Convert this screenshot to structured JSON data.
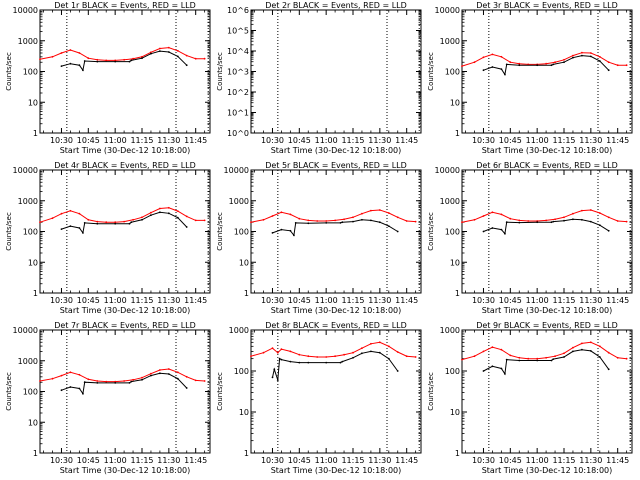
{
  "chart_data": [
    {
      "type": "line",
      "title": "Det 1r BLACK = Events, RED = LLD",
      "xlabel": "Start Time (30-Dec-12 10:18:00)",
      "ylabel": "Counts/sec",
      "yscale": "log",
      "ylim": [
        1,
        10000
      ],
      "yticks": [
        "1",
        "10",
        "100",
        "1000",
        "10000"
      ],
      "xlim": [
        "10:18",
        "11:53"
      ],
      "xticks": [
        "10:30",
        "10:45",
        "11:00",
        "11:15",
        "11:30",
        "11:45"
      ],
      "vlines": [
        "10:33",
        "11:34",
        "11:52"
      ],
      "series": [
        {
          "color": "#ff0000",
          "x": [
            "10:18",
            "10:25",
            "10:30",
            "10:35",
            "10:40",
            "10:45",
            "10:50",
            "10:55",
            "11:00",
            "11:05",
            "11:10",
            "11:15",
            "11:20",
            "11:25",
            "11:30",
            "11:35",
            "11:40",
            "11:45",
            "11:50"
          ],
          "values": [
            250,
            300,
            400,
            500,
            400,
            270,
            240,
            230,
            230,
            240,
            260,
            300,
            420,
            560,
            600,
            470,
            330,
            260,
            260
          ]
        },
        {
          "color": "#000000",
          "x": [
            "10:30",
            "10:35",
            "10:40",
            "10:42",
            "10:43",
            "10:50",
            "11:00",
            "11:08",
            "11:09",
            "11:15",
            "11:20",
            "11:25",
            "11:30",
            "11:35",
            "11:40"
          ],
          "values": [
            150,
            180,
            160,
            110,
            220,
            210,
            210,
            210,
            230,
            270,
            380,
            460,
            430,
            310,
            160
          ]
        }
      ]
    },
    {
      "type": "line",
      "title": "Det 2r BLACK = Events, RED = LLD",
      "xlabel": "Start Time (30-Dec-12 10:18:00)",
      "ylabel": "Counts/sec",
      "yscale": "log",
      "ylim": [
        1,
        1000000
      ],
      "yticks": [
        "10^0",
        "10^1",
        "10^2",
        "10^3",
        "10^4",
        "10^5",
        "10^6"
      ],
      "xlim": [
        "10:18",
        "11:53"
      ],
      "xticks": [
        "10:30",
        "10:45",
        "11:00",
        "11:15",
        "11:30",
        "11:45"
      ],
      "vlines": [
        "10:33",
        "11:34",
        "11:52"
      ],
      "series": []
    },
    {
      "type": "line",
      "title": "Det 3r BLACK = Events, RED = LLD",
      "xlabel": "Start Time (30-Dec-12 10:18:00)",
      "ylabel": "Counts/sec",
      "yscale": "log",
      "ylim": [
        1,
        10000
      ],
      "yticks": [
        "1",
        "10",
        "100",
        "1000",
        "10000"
      ],
      "xlim": [
        "10:18",
        "11:53"
      ],
      "xticks": [
        "10:30",
        "10:45",
        "11:00",
        "11:15",
        "11:30",
        "11:45"
      ],
      "vlines": [
        "10:33",
        "11:34",
        "11:52"
      ],
      "series": [
        {
          "color": "#ff0000",
          "x": [
            "10:18",
            "10:25",
            "10:30",
            "10:35",
            "10:40",
            "10:45",
            "10:50",
            "10:55",
            "11:00",
            "11:05",
            "11:10",
            "11:15",
            "11:20",
            "11:25",
            "11:30",
            "11:35",
            "11:40",
            "11:45",
            "11:50"
          ],
          "values": [
            150,
            200,
            290,
            360,
            300,
            200,
            180,
            170,
            170,
            180,
            200,
            240,
            330,
            410,
            400,
            300,
            200,
            160,
            160
          ]
        },
        {
          "color": "#000000",
          "x": [
            "10:30",
            "10:35",
            "10:40",
            "10:42",
            "10:43",
            "10:50",
            "11:00",
            "11:08",
            "11:09",
            "11:15",
            "11:20",
            "11:25",
            "11:30",
            "11:35",
            "11:40"
          ],
          "values": [
            110,
            140,
            120,
            80,
            170,
            160,
            160,
            160,
            170,
            200,
            280,
            330,
            310,
            220,
            110
          ]
        }
      ]
    },
    {
      "type": "line",
      "title": "Det 4r BLACK = Events, RED = LLD",
      "xlabel": "Start Time (30-Dec-12 10:18:00)",
      "ylabel": "Counts/sec",
      "yscale": "log",
      "ylim": [
        1,
        10000
      ],
      "yticks": [
        "1",
        "10",
        "100",
        "1000",
        "10000"
      ],
      "xlim": [
        "10:18",
        "11:53"
      ],
      "xticks": [
        "10:30",
        "10:45",
        "11:00",
        "11:15",
        "11:30",
        "11:45"
      ],
      "vlines": [
        "10:33",
        "11:34",
        "11:52"
      ],
      "series": [
        {
          "color": "#ff0000",
          "x": [
            "10:18",
            "10:25",
            "10:30",
            "10:35",
            "10:40",
            "10:45",
            "10:50",
            "10:55",
            "11:00",
            "11:05",
            "11:10",
            "11:15",
            "11:20",
            "11:25",
            "11:30",
            "11:35",
            "11:40",
            "11:45",
            "11:50"
          ],
          "values": [
            200,
            270,
            380,
            470,
            380,
            240,
            210,
            200,
            200,
            210,
            240,
            290,
            410,
            560,
            590,
            460,
            310,
            230,
            230
          ]
        },
        {
          "color": "#000000",
          "x": [
            "10:30",
            "10:35",
            "10:40",
            "10:42",
            "10:43",
            "10:50",
            "11:00",
            "11:08",
            "11:09",
            "11:15",
            "11:20",
            "11:25",
            "11:30",
            "11:35",
            "11:40"
          ],
          "values": [
            120,
            150,
            130,
            90,
            190,
            180,
            180,
            180,
            200,
            240,
            340,
            420,
            390,
            280,
            140
          ]
        }
      ]
    },
    {
      "type": "line",
      "title": "Det 5r BLACK = Events, RED = LLD",
      "xlabel": "Start Time (30-Dec-12 10:18:00)",
      "ylabel": "Counts/sec",
      "yscale": "log",
      "ylim": [
        1,
        10000
      ],
      "yticks": [
        "1",
        "10",
        "100",
        "1000",
        "10000"
      ],
      "xlim": [
        "10:18",
        "11:53"
      ],
      "xticks": [
        "10:30",
        "10:45",
        "11:00",
        "11:15",
        "11:30",
        "11:45"
      ],
      "vlines": [
        "10:33",
        "11:34",
        "11:52"
      ],
      "series": [
        {
          "color": "#ff0000",
          "x": [
            "10:18",
            "10:25",
            "10:30",
            "10:35",
            "10:40",
            "10:45",
            "10:50",
            "10:55",
            "11:00",
            "11:05",
            "11:10",
            "11:15",
            "11:20",
            "11:25",
            "11:30",
            "11:35",
            "11:40",
            "11:45",
            "11:50"
          ],
          "values": [
            200,
            240,
            320,
            420,
            360,
            260,
            230,
            220,
            220,
            230,
            250,
            290,
            380,
            480,
            500,
            400,
            290,
            220,
            210
          ]
        },
        {
          "color": "#000000",
          "x": [
            "10:30",
            "10:35",
            "10:40",
            "10:42",
            "10:43",
            "10:50",
            "11:00",
            "11:08",
            "11:09",
            "11:15",
            "11:20",
            "11:25",
            "11:30",
            "11:35",
            "11:40"
          ],
          "values": [
            90,
            115,
            105,
            75,
            190,
            185,
            190,
            190,
            200,
            210,
            240,
            230,
            200,
            150,
            100
          ]
        }
      ]
    },
    {
      "type": "line",
      "title": "Det 6r BLACK = Events, RED = LLD",
      "xlabel": "Start Time (30-Dec-12 10:18:00)",
      "ylabel": "Counts/sec",
      "yscale": "log",
      "ylim": [
        1,
        10000
      ],
      "yticks": [
        "1",
        "10",
        "100",
        "1000",
        "10000"
      ],
      "xlim": [
        "10:18",
        "11:53"
      ],
      "xticks": [
        "10:30",
        "10:45",
        "11:00",
        "11:15",
        "11:30",
        "11:45"
      ],
      "vlines": [
        "10:33",
        "11:34",
        "11:52"
      ],
      "series": [
        {
          "color": "#ff0000",
          "x": [
            "10:18",
            "10:25",
            "10:30",
            "10:35",
            "10:40",
            "10:45",
            "10:50",
            "10:55",
            "11:00",
            "11:05",
            "11:10",
            "11:15",
            "11:20",
            "11:25",
            "11:30",
            "11:35",
            "11:40",
            "11:45",
            "11:50"
          ],
          "values": [
            200,
            240,
            320,
            420,
            360,
            260,
            230,
            220,
            220,
            230,
            250,
            290,
            380,
            480,
            500,
            400,
            290,
            220,
            210
          ]
        },
        {
          "color": "#000000",
          "x": [
            "10:30",
            "10:35",
            "10:40",
            "10:42",
            "10:43",
            "10:50",
            "11:00",
            "11:08",
            "11:09",
            "11:15",
            "11:20",
            "11:25",
            "11:30",
            "11:35",
            "11:40"
          ],
          "values": [
            100,
            130,
            115,
            85,
            200,
            195,
            200,
            200,
            210,
            225,
            250,
            240,
            210,
            160,
            105
          ]
        }
      ]
    },
    {
      "type": "line",
      "title": "Det 7r BLACK = Events, RED = LLD",
      "xlabel": "Start Time (30-Dec-12 10:18:00)",
      "ylabel": "Counts/sec",
      "yscale": "log",
      "ylim": [
        1,
        10000
      ],
      "yticks": [
        "1",
        "10",
        "100",
        "1000",
        "10000"
      ],
      "xlim": [
        "10:18",
        "11:53"
      ],
      "xticks": [
        "10:30",
        "10:45",
        "11:00",
        "11:15",
        "11:30",
        "11:45"
      ],
      "vlines": [
        "10:33",
        "11:34",
        "11:52"
      ],
      "series": [
        {
          "color": "#ff0000",
          "x": [
            "10:18",
            "10:25",
            "10:30",
            "10:35",
            "10:40",
            "10:45",
            "10:50",
            "10:55",
            "11:00",
            "11:05",
            "11:10",
            "11:15",
            "11:20",
            "11:25",
            "11:30",
            "11:35",
            "11:40",
            "11:45",
            "11:50"
          ],
          "values": [
            220,
            260,
            330,
            420,
            350,
            250,
            220,
            210,
            210,
            220,
            240,
            280,
            380,
            500,
            540,
            420,
            300,
            230,
            220
          ]
        },
        {
          "color": "#000000",
          "x": [
            "10:30",
            "10:35",
            "10:40",
            "10:42",
            "10:43",
            "10:50",
            "11:00",
            "11:08",
            "11:09",
            "11:15",
            "11:20",
            "11:25",
            "11:30",
            "11:35",
            "11:40"
          ],
          "values": [
            110,
            140,
            125,
            85,
            200,
            190,
            190,
            190,
            210,
            240,
            330,
            390,
            370,
            260,
            130
          ]
        }
      ]
    },
    {
      "type": "line",
      "title": "Det 8r BLACK = Events, RED = LLD",
      "xlabel": "Start Time (30-Dec-12 10:18:00)",
      "ylabel": "Counts/sec",
      "yscale": "log",
      "ylim": [
        1,
        1000
      ],
      "yticks": [
        "1",
        "10",
        "100",
        "1000"
      ],
      "xlim": [
        "10:18",
        "11:53"
      ],
      "xticks": [
        "10:30",
        "10:45",
        "11:00",
        "11:15",
        "11:30",
        "11:45"
      ],
      "vlines": [
        "10:33",
        "11:34",
        "11:52"
      ],
      "series": [
        {
          "color": "#ff0000",
          "x": [
            "10:18",
            "10:25",
            "10:30",
            "10:33",
            "10:35",
            "10:40",
            "10:45",
            "10:50",
            "10:55",
            "11:00",
            "11:05",
            "11:10",
            "11:15",
            "11:20",
            "11:25",
            "11:30",
            "11:35",
            "11:40",
            "11:45",
            "11:50"
          ],
          "values": [
            230,
            280,
            360,
            280,
            340,
            300,
            250,
            230,
            220,
            220,
            230,
            250,
            280,
            360,
            460,
            500,
            400,
            290,
            230,
            220
          ]
        },
        {
          "color": "#000000",
          "x": [
            "10:30",
            "10:31",
            "10:33",
            "10:34",
            "10:35",
            "10:40",
            "10:45",
            "10:50",
            "11:00",
            "11:08",
            "11:09",
            "11:15",
            "11:20",
            "11:25",
            "11:30",
            "11:35",
            "11:40"
          ],
          "values": [
            70,
            110,
            60,
            200,
            190,
            170,
            160,
            160,
            160,
            160,
            170,
            210,
            270,
            300,
            280,
            200,
            100
          ]
        }
      ]
    },
    {
      "type": "line",
      "title": "Det 9r BLACK = Events, RED = LLD",
      "xlabel": "Start Time (30-Dec-12 10:18:00)",
      "ylabel": "Counts/sec",
      "yscale": "log",
      "ylim": [
        1,
        1000
      ],
      "yticks": [
        "1",
        "10",
        "100",
        "1000"
      ],
      "xlim": [
        "10:18",
        "11:53"
      ],
      "xticks": [
        "10:30",
        "10:45",
        "11:00",
        "11:15",
        "11:30",
        "11:45"
      ],
      "vlines": [
        "10:33",
        "11:34",
        "11:52"
      ],
      "series": [
        {
          "color": "#ff0000",
          "x": [
            "10:18",
            "10:25",
            "10:30",
            "10:35",
            "10:40",
            "10:45",
            "10:50",
            "10:55",
            "11:00",
            "11:05",
            "11:10",
            "11:15",
            "11:20",
            "11:25",
            "11:30",
            "11:35",
            "11:40",
            "11:45",
            "11:50"
          ],
          "values": [
            190,
            230,
            300,
            380,
            330,
            240,
            210,
            200,
            200,
            210,
            230,
            270,
            370,
            470,
            500,
            400,
            280,
            210,
            200
          ]
        },
        {
          "color": "#000000",
          "x": [
            "10:30",
            "10:35",
            "10:40",
            "10:42",
            "10:43",
            "10:50",
            "11:00",
            "11:08",
            "11:09",
            "11:15",
            "11:20",
            "11:25",
            "11:30",
            "11:35",
            "11:40"
          ],
          "values": [
            100,
            130,
            115,
            85,
            190,
            180,
            180,
            180,
            195,
            220,
            300,
            330,
            310,
            220,
            110
          ]
        }
      ]
    }
  ]
}
